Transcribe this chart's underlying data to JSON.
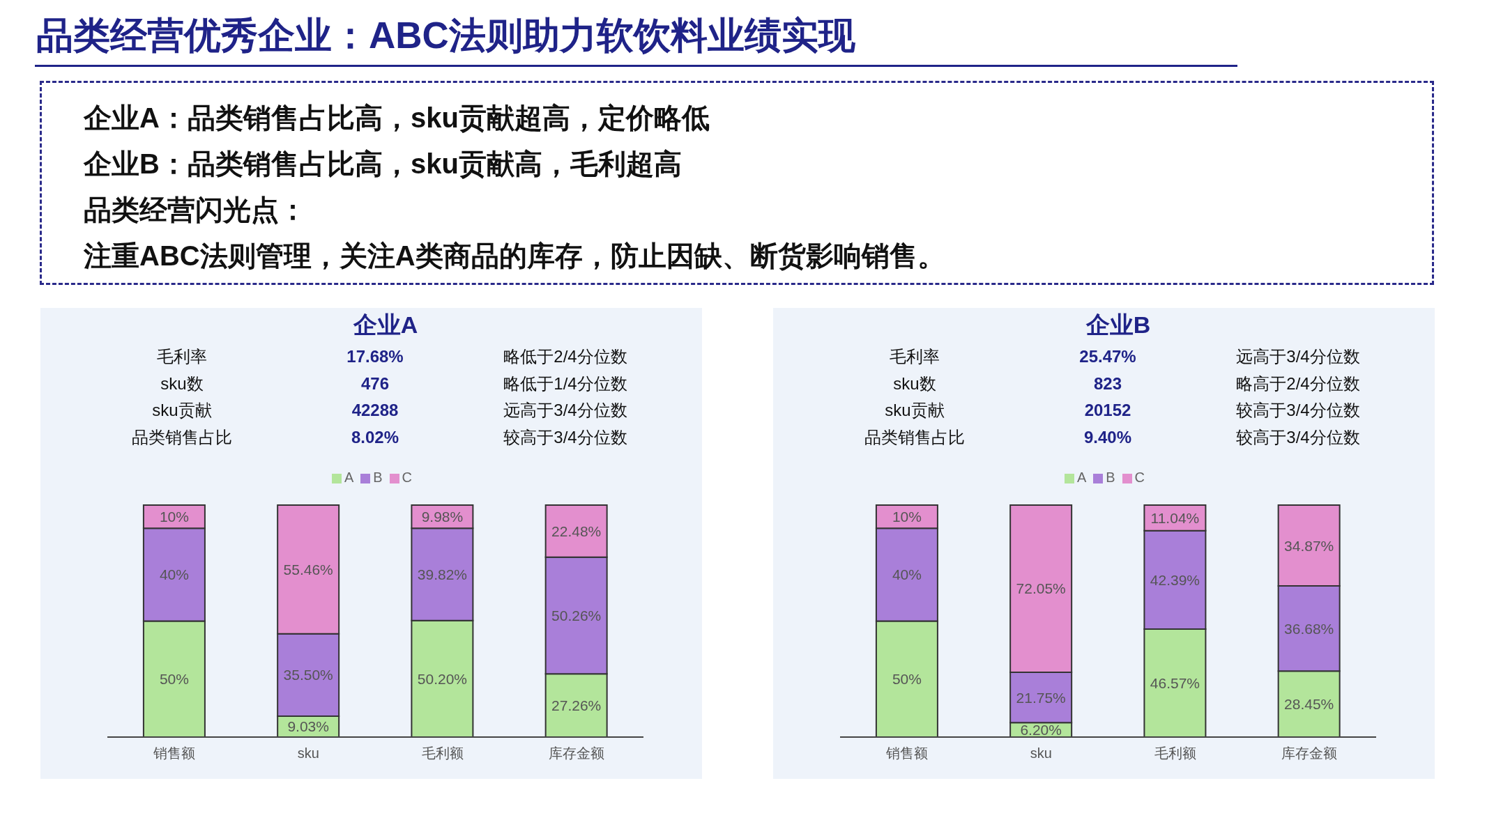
{
  "chart_data": [
    {
      "type": "other",
      "title": "品类经营优秀企业：ABC法则助力软饮料业绩实现",
      "annotations": [
        "企业A：品类销售占比高，sku贡献超高，定价略低",
        "企业B：品类销售占比高，sku贡献高，毛利超高",
        "品类经营闪光点：",
        "注重ABC法则管理，关注A类商品的库存，防止因缺、断货影响销售。"
      ]
    },
    {
      "type": "bar",
      "title": "企业A",
      "stacked": true,
      "legend": "top",
      "categories": [
        "销售额",
        "sku",
        "毛利额",
        "库存金额"
      ],
      "series": [
        {
          "name": "A",
          "color": "#b3e59b",
          "values": [
            50,
            9.03,
            50.2,
            27.26
          ],
          "value_labels": [
            "50%",
            "9.03%",
            "50.20%",
            "27.26%"
          ]
        },
        {
          "name": "B",
          "color": "#a97fd9",
          "values": [
            40,
            35.5,
            39.82,
            50.26
          ],
          "value_labels": [
            "40%",
            "35.50%",
            "39.82%",
            "50.26%"
          ]
        },
        {
          "name": "C",
          "color": "#e38fce",
          "values": [
            10,
            55.46,
            9.98,
            22.48
          ],
          "value_labels": [
            "10%",
            "55.46%",
            "9.98%",
            "22.48%"
          ]
        }
      ],
      "annotations": [
        "毛利率",
        "17.68%",
        "略低于2/4分位数",
        "sku数",
        "476",
        "略低于1/4分位数",
        "sku贡献",
        "42288",
        "远高于3/4分位数",
        "品类销售占比",
        "8.02%",
        "较高于3/4分位数"
      ]
    },
    {
      "type": "bar",
      "title": "企业B",
      "stacked": true,
      "legend": "top",
      "categories": [
        "销售额",
        "sku",
        "毛利额",
        "库存金额"
      ],
      "series": [
        {
          "name": "A",
          "color": "#b3e59b",
          "values": [
            50,
            6.2,
            46.57,
            28.45
          ],
          "value_labels": [
            "50%",
            "6.20%",
            "46.57%",
            "28.45%"
          ]
        },
        {
          "name": "B",
          "color": "#a97fd9",
          "values": [
            40,
            21.75,
            42.39,
            36.68
          ],
          "value_labels": [
            "40%",
            "21.75%",
            "42.39%",
            "36.68%"
          ]
        },
        {
          "name": "C",
          "color": "#e38fce",
          "values": [
            10,
            72.05,
            11.04,
            34.87
          ],
          "value_labels": [
            "10%",
            "72.05%",
            "11.04%",
            "34.87%"
          ]
        }
      ],
      "annotations": [
        "毛利率",
        "25.47%",
        "远高于3/4分位数",
        "sku数",
        "823",
        "略高于2/4分位数",
        "sku贡献",
        "20152",
        "较高于3/4分位数",
        "品类销售占比",
        "9.40%",
        "较高于3/4分位数"
      ]
    }
  ]
}
